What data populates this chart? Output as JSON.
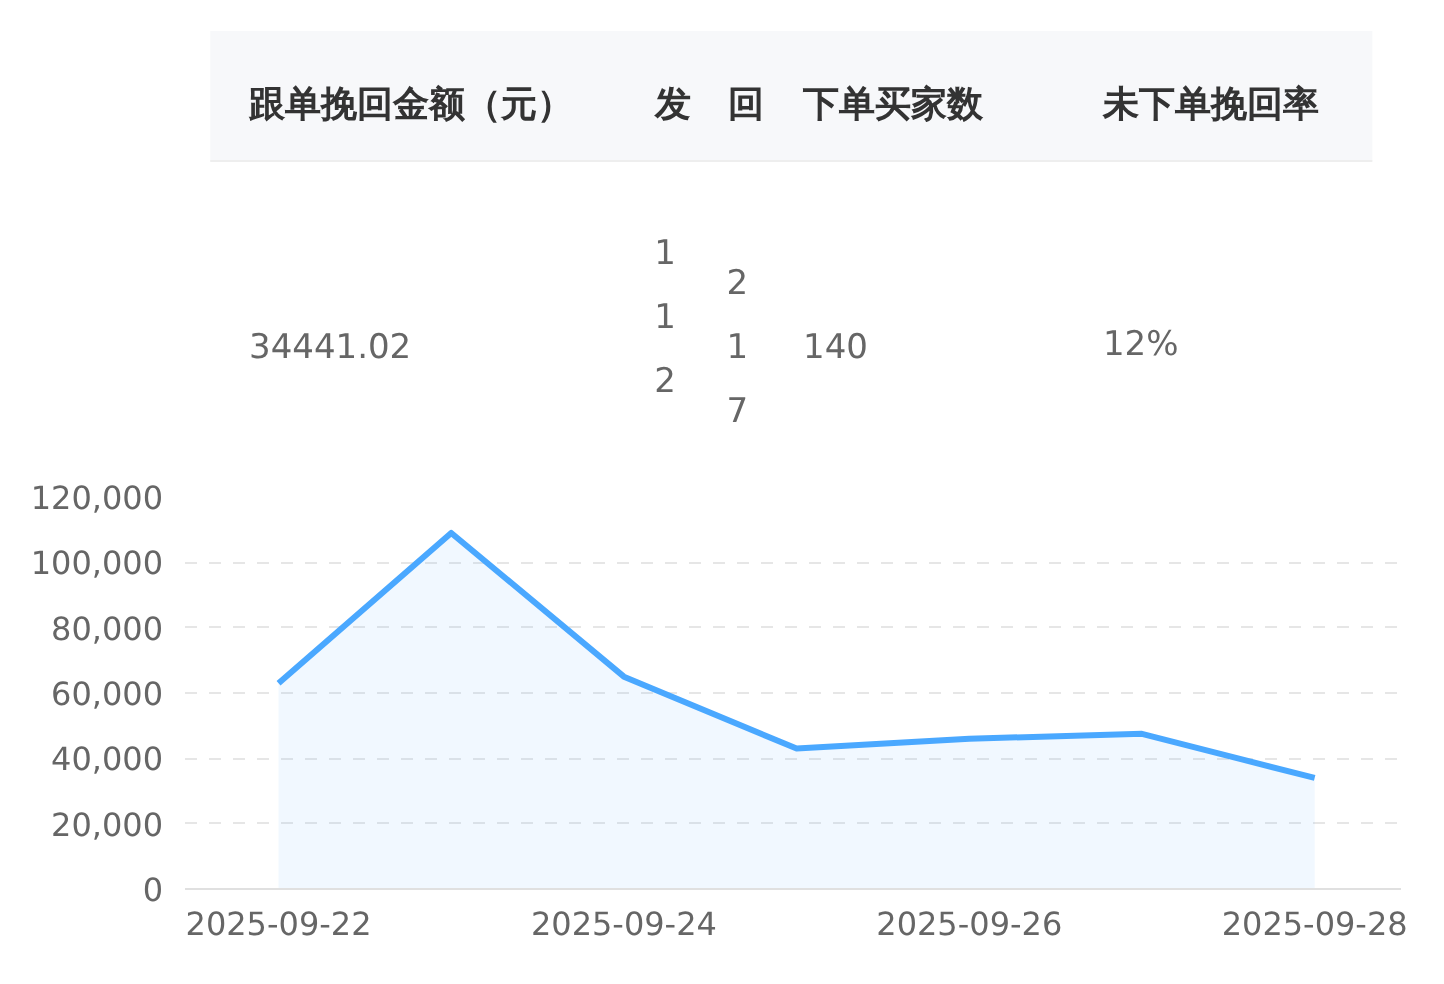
{
  "chart_data": [
    {
      "type": "other",
      "categories": [
        "跟单挽回金额（元）",
        "发",
        "回",
        "下单买家数",
        "未下单挽回率"
      ],
      "cell_labels": [
        [
          "34441.02",
          "112",
          "217",
          "140",
          "12%"
        ]
      ]
    },
    {
      "type": "area",
      "x": [
        "2025-09-22",
        "2025-09-23",
        "2025-09-24",
        "2025-09-25",
        "2025-09-26",
        "2025-09-27",
        "2025-09-28"
      ],
      "series": [
        {
          "color": "#4aa8ff",
          "values": [
            63000,
            109000,
            65000,
            43000,
            46000,
            47500,
            34000
          ]
        }
      ],
      "xlim": [
        "2025-09-21T11:00",
        "2025-09-28T12:00"
      ],
      "xticks": [
        "2025-09-22",
        "2025-09-24",
        "2025-09-26",
        "2025-09-28"
      ],
      "ylim": [
        0,
        120000
      ],
      "yticks": [
        {
          "value": 0,
          "label": "0"
        },
        {
          "value": 20000,
          "label": "20,000"
        },
        {
          "value": 40000,
          "label": "40,000"
        },
        {
          "value": 60000,
          "label": "60,000"
        },
        {
          "value": 80000,
          "label": "80,000"
        },
        {
          "value": 100000,
          "label": "100,000"
        },
        {
          "value": 120000,
          "label": "120,000"
        }
      ],
      "grid": "y",
      "marker": "none",
      "line_style": "solid"
    }
  ]
}
